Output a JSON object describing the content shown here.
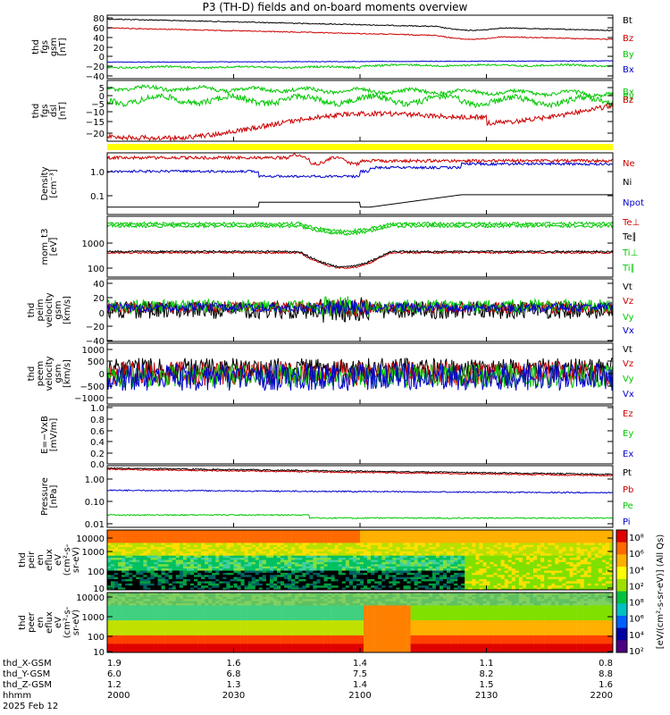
{
  "title": "P3 (TH-D) fields and on-board moments overview",
  "colorbar_label": "[eV/(cm²-s-sr-eV)] (All Qs)",
  "colorbar_ticks": [
    "10⁸",
    "10⁶",
    "10⁴",
    "10²",
    "10⁸",
    "10⁶",
    "10⁴",
    "10²"
  ],
  "chart_data": [
    {
      "type": "line",
      "ylabel": [
        "thd",
        "fgs",
        "gsm",
        "[nT]"
      ],
      "yticks": [
        "80",
        "60",
        "40",
        "20",
        "0",
        "−20",
        "−40"
      ],
      "ylim": [
        -45,
        90
      ],
      "series": [
        {
          "name": "Bt",
          "color": "#000000"
        },
        {
          "name": "Bz",
          "color": "#cc0000"
        },
        {
          "name": "By",
          "color": "#00c800"
        },
        {
          "name": "Bx",
          "color": "#0000cc"
        }
      ]
    },
    {
      "type": "line",
      "ylabel": [
        "thd",
        "fgs",
        "dsl",
        "[nT]"
      ],
      "yticks": [
        "5",
        "0",
        "−5",
        "−10",
        "−15",
        "−20"
      ],
      "ylim": [
        -25,
        8
      ],
      "series": [
        {
          "name": "Bx",
          "color": "#00c800"
        },
        {
          "name": "By",
          "color": "#00c800"
        },
        {
          "name": "Bz",
          "color": "#cc0000"
        }
      ]
    },
    {
      "type": "line",
      "ylabel": [
        "Density",
        "[cm⁻³]"
      ],
      "yticks": [
        "1.0",
        "0.1"
      ],
      "ylog": true,
      "series": [
        {
          "name": "Ne",
          "color": "#cc0000"
        },
        {
          "name": "Ni",
          "color": "#000000"
        },
        {
          "name": "Npot",
          "color": "#0000cc"
        }
      ]
    },
    {
      "type": "line",
      "ylabel": [
        "mom_t3",
        "[eV]"
      ],
      "yticks": [
        "1000",
        "100"
      ],
      "ylog": true,
      "series": [
        {
          "name": "Te⊥",
          "color": "#cc0000"
        },
        {
          "name": "Te∥",
          "color": "#000000"
        },
        {
          "name": "Ti⊥",
          "color": "#00c800"
        },
        {
          "name": "Ti∥",
          "color": "#00c800"
        }
      ]
    },
    {
      "type": "line",
      "ylabel": [
        "thd",
        "peim",
        "velocity",
        "gsm",
        "[km/s]"
      ],
      "yticks": [
        "40",
        "20",
        "0",
        "−20",
        "−40"
      ],
      "ylim": [
        -50,
        40
      ],
      "series": [
        {
          "name": "Vt",
          "color": "#000000"
        },
        {
          "name": "Vz",
          "color": "#cc0000"
        },
        {
          "name": "Vy",
          "color": "#00c800"
        },
        {
          "name": "Vx",
          "color": "#0000cc"
        }
      ]
    },
    {
      "type": "line",
      "ylabel": [
        "thd",
        "peem",
        "velocity",
        "gsm",
        "[km/s]"
      ],
      "yticks": [
        "1000",
        "500",
        "0",
        "−500",
        "−1000"
      ],
      "ylim": [
        -1200,
        1100
      ],
      "series": [
        {
          "name": "Vt",
          "color": "#000000"
        },
        {
          "name": "Vz",
          "color": "#cc0000"
        },
        {
          "name": "Vy",
          "color": "#00c800"
        },
        {
          "name": "Vx",
          "color": "#0000cc"
        }
      ]
    },
    {
      "type": "line",
      "ylabel": [
        "E=−VxB",
        "[mV/m]"
      ],
      "yticks": [
        "1.0",
        "0.8",
        "0.6",
        "0.4",
        "0.2",
        "0.0"
      ],
      "ylim": [
        0,
        1
      ],
      "series": [
        {
          "name": "Ez",
          "color": "#cc0000"
        },
        {
          "name": "Ey",
          "color": "#00c800"
        },
        {
          "name": "Ex",
          "color": "#0000cc"
        }
      ]
    },
    {
      "type": "line",
      "ylabel": [
        "Pressure",
        "[nPa]"
      ],
      "yticks": [
        "1.00",
        "0.10",
        "0.01"
      ],
      "ylog": true,
      "series": [
        {
          "name": "Pt",
          "color": "#000000"
        },
        {
          "name": "Pb",
          "color": "#cc0000"
        },
        {
          "name": "Pe",
          "color": "#00c800"
        },
        {
          "name": "Pi",
          "color": "#0000cc"
        }
      ]
    },
    {
      "type": "heatmap",
      "ylabel": [
        "thd",
        "peir",
        "en",
        "eflux",
        "eV",
        "(cm²-s-",
        "sr-eV)"
      ],
      "yticks": [
        "10000",
        "1000",
        "100",
        "10"
      ],
      "ylog": true
    },
    {
      "type": "heatmap",
      "ylabel": [
        "thd",
        "peer",
        "en",
        "eflux",
        "eV",
        "(cm²-s-",
        "sr-eV)"
      ],
      "yticks": [
        "10000",
        "1000",
        "100",
        "10"
      ],
      "ylog": true
    }
  ],
  "footer": {
    "labels": [
      "thd_X-GSM",
      "thd_Y-GSM",
      "thd_Z-GSM",
      "hhmm",
      "2025 Feb 12"
    ],
    "columns": [
      {
        "x": "1.9",
        "y": "6.0",
        "z": "1.2",
        "t": "2000"
      },
      {
        "x": "1.6",
        "y": "6.8",
        "z": "1.3",
        "t": "2030"
      },
      {
        "x": "1.4",
        "y": "7.5",
        "z": "1.4",
        "t": "2100"
      },
      {
        "x": "1.1",
        "y": "8.2",
        "z": "1.5",
        "t": "2130"
      },
      {
        "x": "0.8",
        "y": "8.8",
        "z": "1.6",
        "t": "2200"
      }
    ]
  }
}
